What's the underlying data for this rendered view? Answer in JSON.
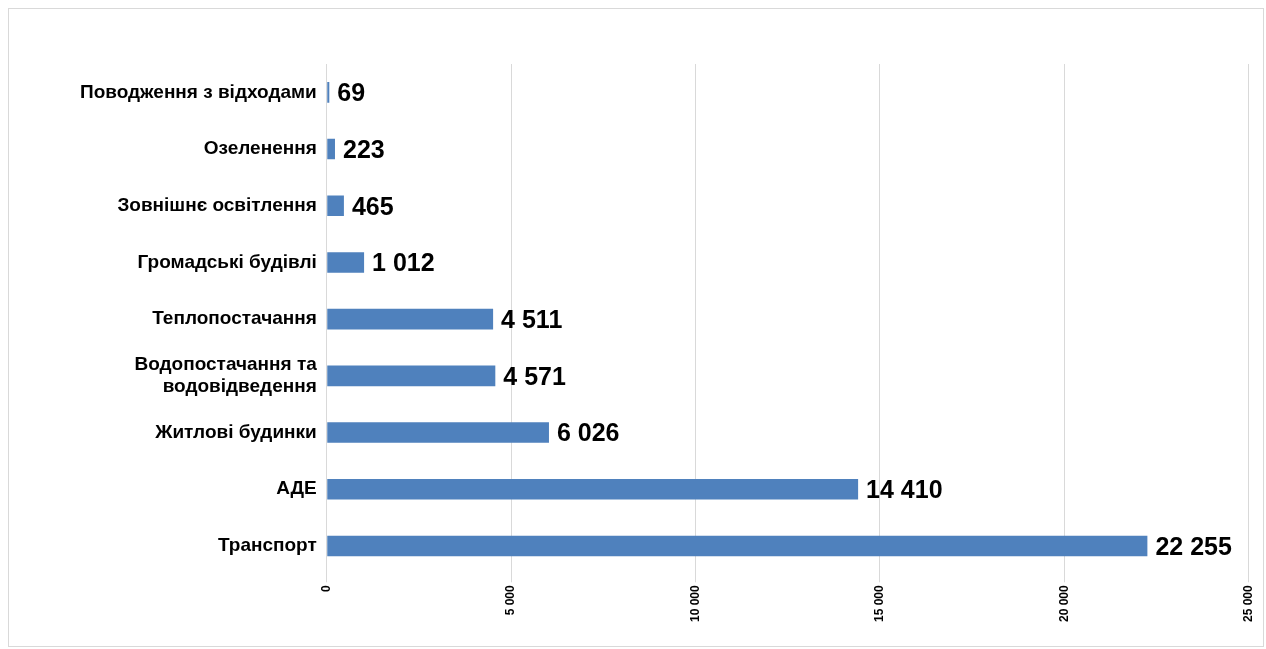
{
  "chart_data": {
    "type": "bar",
    "orientation": "horizontal",
    "categories": [
      "Поводження з відходами",
      "Озеленення",
      "Зовнішнє освітлення",
      "Громадські будівлі",
      "Теплопостачання",
      "Водопостачання та водовідведення",
      "Житлові будинки",
      "АДЕ",
      "Транспорт"
    ],
    "values": [
      69,
      223,
      465,
      1012,
      4511,
      4571,
      6026,
      14410,
      22255
    ],
    "value_labels": [
      "69",
      "223",
      "465",
      "1 012",
      "4 511",
      "4 571",
      "6 026",
      "14 410",
      "22 255"
    ],
    "color": "#4f81bd",
    "xlim": [
      0,
      25000
    ],
    "xticks": [
      0,
      {
        "value": 5000,
        "label": "5 000"
      },
      {
        "value": 10000,
        "label": "10 000"
      },
      {
        "value": 15000,
        "label": "15 000"
      },
      {
        "value": 20000,
        "label": "20 000"
      },
      {
        "value": 25000,
        "label": "25 000"
      }
    ],
    "grid": "x"
  }
}
